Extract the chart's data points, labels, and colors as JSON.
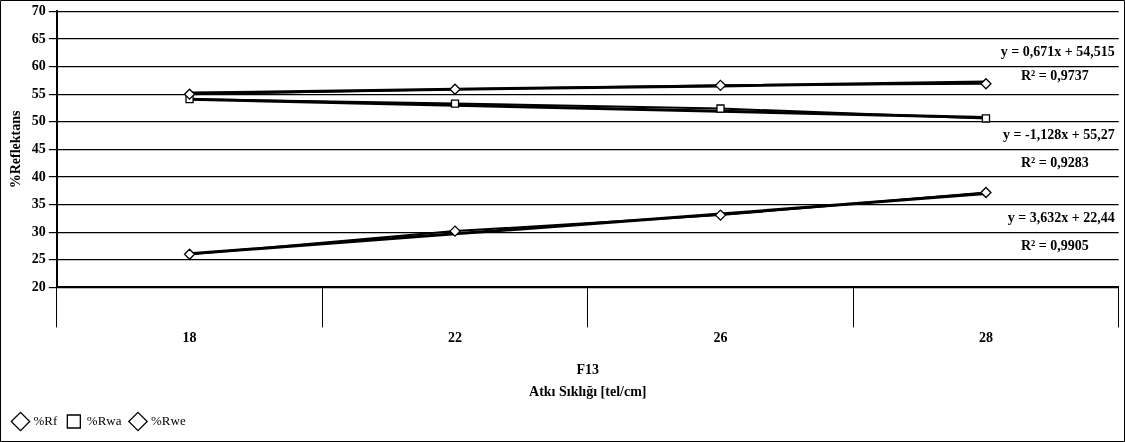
{
  "chart_data": {
    "type": "line",
    "xlabel": "Atkı Sıklığı [tel/cm]",
    "ylabel": "%Reflektans",
    "categories": [
      "18",
      "22",
      "26",
      "28"
    ],
    "series": [
      {
        "name": "%Rf",
        "color": "#000000",
        "marker": "diamond",
        "values": [
          55.0,
          55.9,
          56.6,
          56.9
        ]
      },
      {
        "name": "%Rwa",
        "color": "#000000",
        "marker": "square",
        "values": [
          54.1,
          53.3,
          52.4,
          50.6
        ]
      },
      {
        "name": "%Rwe",
        "color": "#000000",
        "marker": "diamond",
        "values": [
          26.0,
          30.2,
          33.1,
          37.2
        ]
      },
      {
        "type": "line",
        "color": "#000000",
        "marker": "none",
        "values": [
          55.2,
          55.9,
          56.5,
          57.2
        ]
      },
      {
        "type": "line",
        "color": "#000000",
        "marker": "none",
        "values": [
          54.1,
          53.0,
          51.9,
          50.8
        ]
      },
      {
        "type": "line",
        "color": "#000000",
        "marker": "none",
        "values": [
          26.1,
          29.7,
          33.3,
          37.0
        ]
      }
    ],
    "ylim": [
      20,
      70
    ],
    "yticks": [
      20,
      25,
      30,
      35,
      40,
      45,
      50,
      55,
      60,
      65,
      70
    ],
    "grid": "y",
    "legend": "bottom left",
    "annotations": [
      "y = 0,671x + 54,515",
      "R² = 0,9737",
      "y = -1,128x + 55,27",
      "R² = 0,9283",
      "y = 3,632x + 22,44",
      "R² = 0,9905",
      "F13"
    ]
  }
}
